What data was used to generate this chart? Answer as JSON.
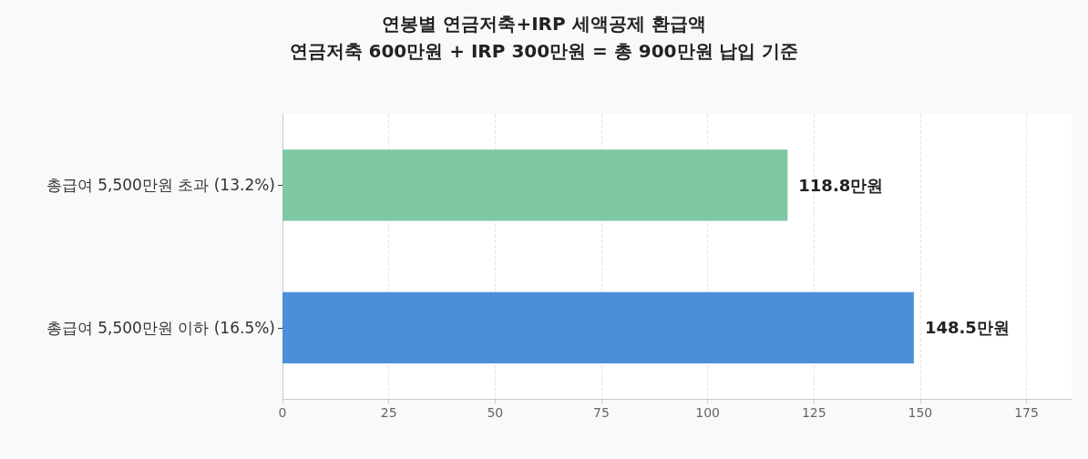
{
  "chart_data": {
    "type": "bar",
    "orientation": "horizontal",
    "title": "연봉별 연금저축+IRP 세액공제 환급액\n연금저축 600만원 + IRP 300만원 = 총 900만원 납입 기준",
    "categories": [
      "총급여 5,500만원 초과 (13.2%)",
      "총급여 5,500만원 이하 (16.5%)"
    ],
    "values": [
      118.8,
      148.5
    ],
    "colors": [
      "#7ec8a4",
      "#4a90d9"
    ],
    "value_labels": [
      "118.8만원",
      "148.5만원"
    ],
    "xlim": [
      0,
      185.6
    ],
    "xticks": [
      0,
      25,
      50,
      75,
      100,
      125,
      150,
      175
    ],
    "grid": "x"
  }
}
